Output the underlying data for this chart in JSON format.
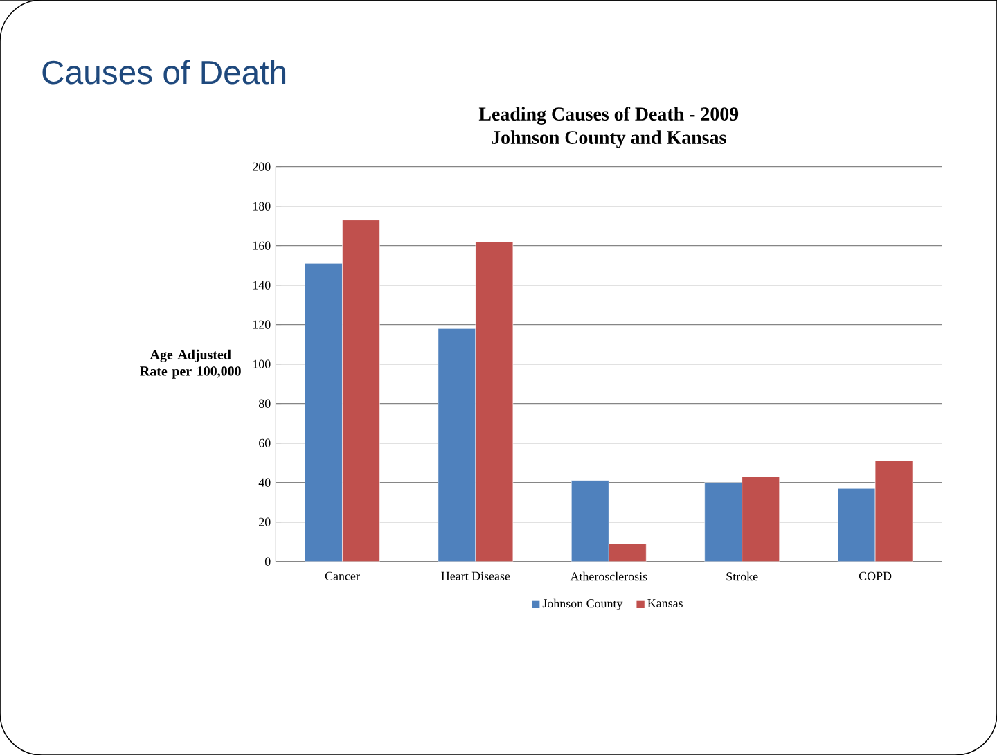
{
  "chart_data": {
    "type": "bar",
    "title": "Leading Causes of Death - 2009",
    "subtitle": "Johnson County and Kansas",
    "annotations": [
      "Causes of Death"
    ],
    "ylabel": "Age Adjusted Rate per 100,000",
    "categories": [
      "Cancer",
      "Heart Disease",
      "Atherosclerosis",
      "Stroke",
      "COPD"
    ],
    "series": [
      {
        "name": "Johnson County",
        "color": "#4f81bd",
        "values": [
          151,
          118,
          41,
          40,
          37
        ]
      },
      {
        "name": "Kansas",
        "color": "#c0504d",
        "values": [
          173,
          162,
          9,
          43,
          51
        ]
      }
    ],
    "ylim": [
      0,
      200
    ],
    "yticks": [
      0,
      20,
      40,
      60,
      80,
      100,
      120,
      140,
      160,
      180,
      200
    ],
    "grid": "y",
    "legend": "bottom"
  }
}
